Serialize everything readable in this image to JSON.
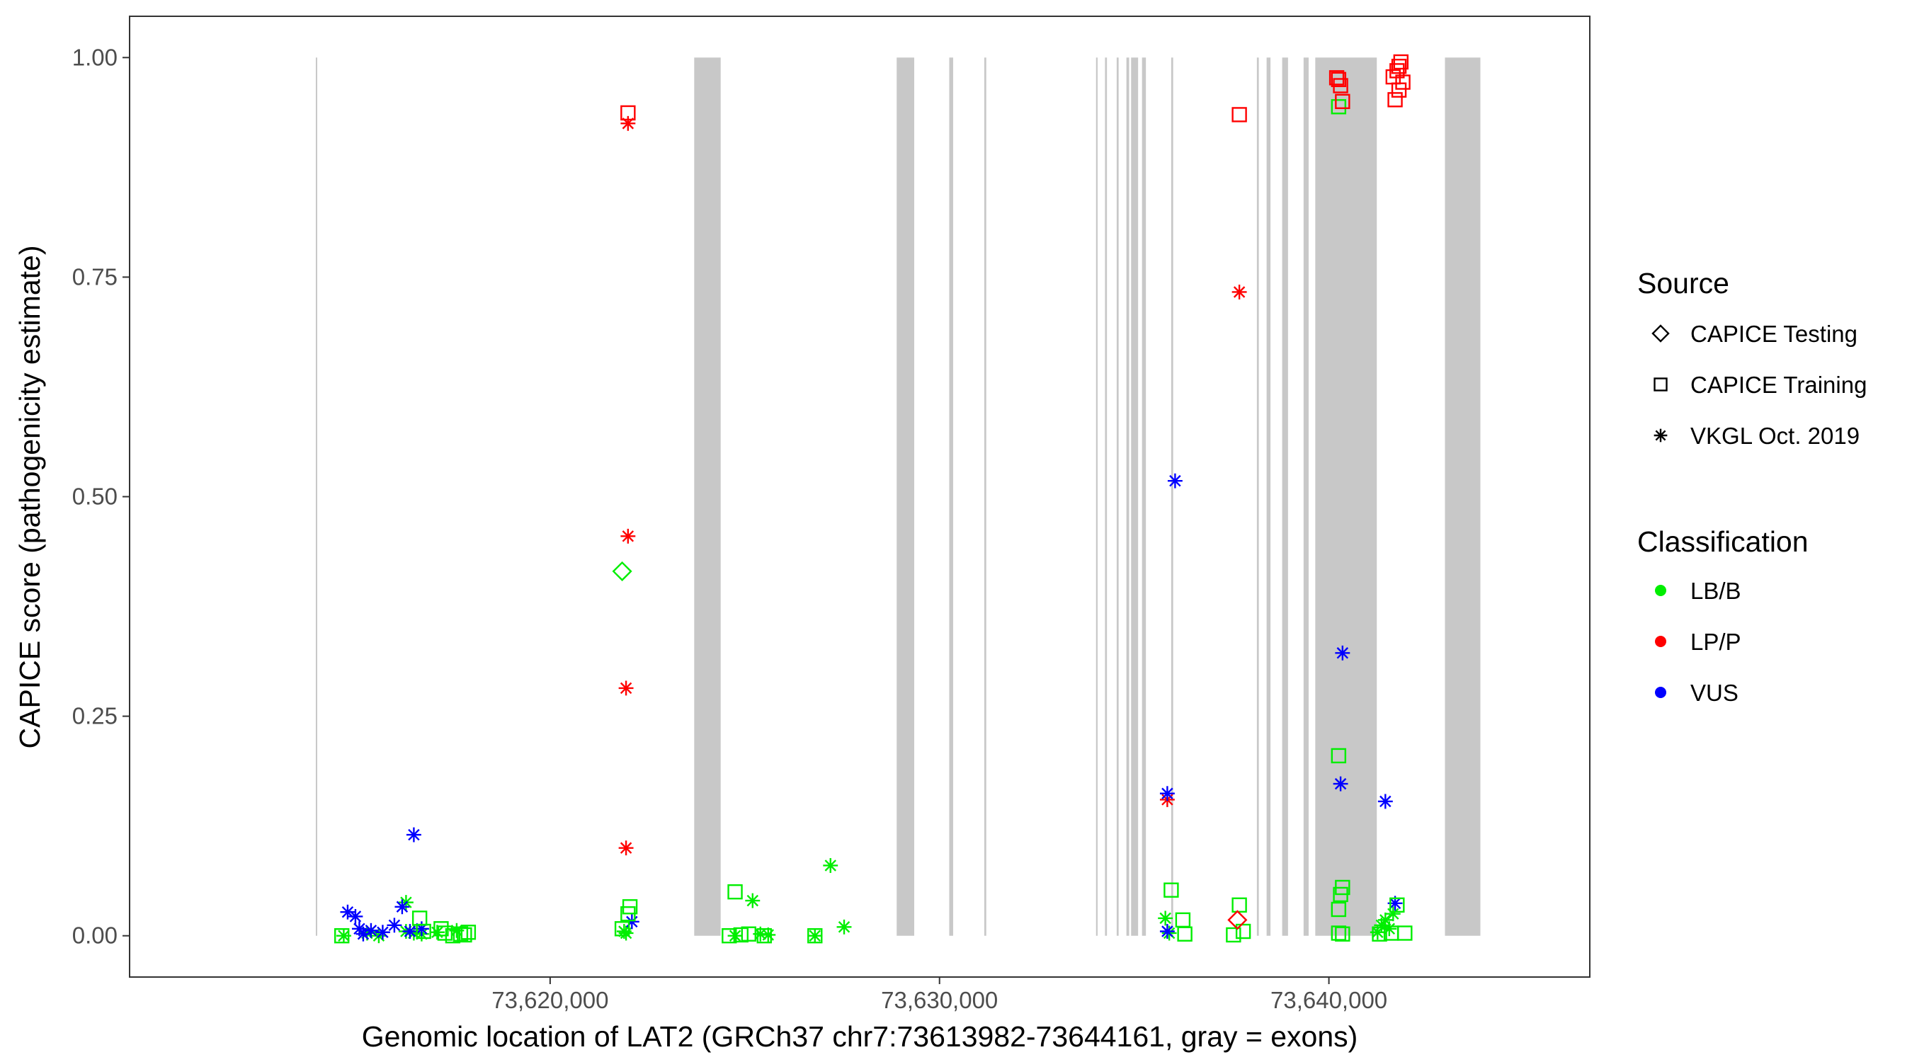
{
  "chart_data": {
    "type": "scatter",
    "title": "",
    "xlabel": "Genomic location of LAT2 (GRCh37 chr7:73613982-73644161, gray = exons)",
    "ylabel": "CAPICE score (pathogenicity estimate)",
    "xlim": [
      73609200,
      73646700
    ],
    "ylim": [
      -0.047,
      1.047
    ],
    "x_ticks": [
      73620000,
      73630000,
      73640000
    ],
    "x_tick_labels": [
      "73,620,000",
      "73,630,000",
      "73,640,000"
    ],
    "y_ticks": [
      0,
      0.25,
      0.5,
      0.75,
      1.0
    ],
    "y_tick_labels": [
      "0.00",
      "0.25",
      "0.50",
      "0.75",
      "1.00"
    ],
    "grid": false,
    "exons": [
      [
        73613982,
        73614010
      ],
      [
        73623700,
        73624380
      ],
      [
        73628900,
        73629350
      ],
      [
        73630250,
        73630350
      ],
      [
        73631150,
        73631200
      ],
      [
        73634020,
        73634060
      ],
      [
        73634250,
        73634300
      ],
      [
        73634550,
        73634600
      ],
      [
        73634800,
        73634870
      ],
      [
        73634920,
        73635100
      ],
      [
        73635200,
        73635300
      ],
      [
        73635950,
        73636000
      ],
      [
        73638150,
        73638200
      ],
      [
        73638400,
        73638500
      ],
      [
        73638800,
        73638950
      ],
      [
        73639350,
        73639480
      ],
      [
        73639650,
        73641230
      ],
      [
        73642980,
        73643890
      ]
    ],
    "legend": {
      "position": "right",
      "source_title": "Source",
      "source_entries": [
        {
          "label": "CAPICE Testing",
          "shape": "diamond"
        },
        {
          "label": "CAPICE Training",
          "shape": "square"
        },
        {
          "label": "VKGL Oct. 2019",
          "shape": "asterisk"
        }
      ],
      "class_title": "Classification",
      "class_entries": [
        {
          "label": "LB/B",
          "color": "#00ee00"
        },
        {
          "label": "LP/P",
          "color": "#ff0000"
        },
        {
          "label": "VUS",
          "color": "#0000ff"
        }
      ]
    },
    "series": [
      {
        "shape": "asterisk",
        "classification": "LB/B",
        "color": "#00ee00",
        "points": [
          [
            73614700,
            0.0
          ],
          [
            73615300,
            0.003
          ],
          [
            73615600,
            0.0
          ],
          [
            73616300,
            0.005
          ],
          [
            73616300,
            0.038
          ],
          [
            73616500,
            0.003
          ],
          [
            73616700,
            0.002
          ],
          [
            73617100,
            0.004
          ],
          [
            73617600,
            0.006
          ],
          [
            73621900,
            0.005
          ],
          [
            73621950,
            0.003
          ],
          [
            73624750,
            0.0
          ],
          [
            73625200,
            0.04
          ],
          [
            73625400,
            0.002
          ],
          [
            73625600,
            0.001
          ],
          [
            73626800,
            0.0
          ],
          [
            73627200,
            0.08
          ],
          [
            73627550,
            0.01
          ],
          [
            73635800,
            0.02
          ],
          [
            73635900,
            0.003
          ],
          [
            73641250,
            0.004
          ],
          [
            73641350,
            0.012
          ],
          [
            73641450,
            0.018
          ],
          [
            73641550,
            0.008
          ],
          [
            73641650,
            0.025
          ]
        ]
      },
      {
        "shape": "asterisk",
        "classification": "LP/P",
        "color": "#ff0000",
        "points": [
          [
            73622000,
            0.925
          ],
          [
            73622000,
            0.455
          ],
          [
            73621950,
            0.282
          ],
          [
            73621950,
            0.1
          ],
          [
            73635850,
            0.155
          ],
          [
            73637700,
            0.733
          ]
        ]
      },
      {
        "shape": "asterisk",
        "classification": "VUS",
        "color": "#0000ff",
        "points": [
          [
            73614800,
            0.027
          ],
          [
            73615000,
            0.022
          ],
          [
            73615100,
            0.008
          ],
          [
            73615200,
            0.002
          ],
          [
            73615400,
            0.006
          ],
          [
            73615700,
            0.004
          ],
          [
            73616000,
            0.012
          ],
          [
            73616200,
            0.033
          ],
          [
            73616400,
            0.005
          ],
          [
            73616500,
            0.115
          ],
          [
            73616700,
            0.008
          ],
          [
            73622100,
            0.016
          ],
          [
            73635850,
            0.162
          ],
          [
            73635850,
            0.005
          ],
          [
            73636050,
            0.518
          ],
          [
            73640350,
            0.322
          ],
          [
            73640300,
            0.173
          ],
          [
            73641450,
            0.153
          ],
          [
            73641700,
            0.037
          ]
        ]
      },
      {
        "shape": "square",
        "classification": "LB/B",
        "color": "#00ee00",
        "points": [
          [
            73614650,
            0.0
          ],
          [
            73616650,
            0.02
          ],
          [
            73616750,
            0.005
          ],
          [
            73617200,
            0.008
          ],
          [
            73617300,
            0.003
          ],
          [
            73617500,
            0.0
          ],
          [
            73617700,
            0.002
          ],
          [
            73617800,
            0.001
          ],
          [
            73617900,
            0.004
          ],
          [
            73621850,
            0.008
          ],
          [
            73622000,
            0.025
          ],
          [
            73622050,
            0.033
          ],
          [
            73624600,
            0.0
          ],
          [
            73624750,
            0.05
          ],
          [
            73624900,
            0.001
          ],
          [
            73625100,
            0.002
          ],
          [
            73625500,
            0.0
          ],
          [
            73626800,
            0.0
          ],
          [
            73635950,
            0.052
          ],
          [
            73636250,
            0.018
          ],
          [
            73636300,
            0.002
          ],
          [
            73637550,
            0.001
          ],
          [
            73637700,
            0.035
          ],
          [
            73637800,
            0.005
          ],
          [
            73640250,
            0.944
          ],
          [
            73640250,
            0.205
          ],
          [
            73640250,
            0.03
          ],
          [
            73640300,
            0.047
          ],
          [
            73640350,
            0.055
          ],
          [
            73640250,
            0.003
          ],
          [
            73640350,
            0.002
          ],
          [
            73641300,
            0.002
          ],
          [
            73641600,
            0.003
          ],
          [
            73641950,
            0.003
          ],
          [
            73641750,
            0.035
          ]
        ]
      },
      {
        "shape": "square",
        "classification": "LP/P",
        "color": "#ff0000",
        "points": [
          [
            73622000,
            0.937
          ],
          [
            73637700,
            0.935
          ],
          [
            73640200,
            0.977
          ],
          [
            73640250,
            0.975
          ],
          [
            73640300,
            0.968
          ],
          [
            73640350,
            0.95
          ],
          [
            73641650,
            0.978
          ],
          [
            73641750,
            0.985
          ],
          [
            73641800,
            0.99
          ],
          [
            73641850,
            0.995
          ],
          [
            73641800,
            0.963
          ],
          [
            73641900,
            0.972
          ],
          [
            73641700,
            0.952
          ]
        ]
      },
      {
        "shape": "diamond",
        "classification": "LB/B",
        "color": "#00ee00",
        "points": [
          [
            73621850,
            0.415
          ]
        ]
      },
      {
        "shape": "diamond",
        "classification": "LP/P",
        "color": "#ff0000",
        "points": [
          [
            73637650,
            0.018
          ]
        ]
      }
    ]
  }
}
